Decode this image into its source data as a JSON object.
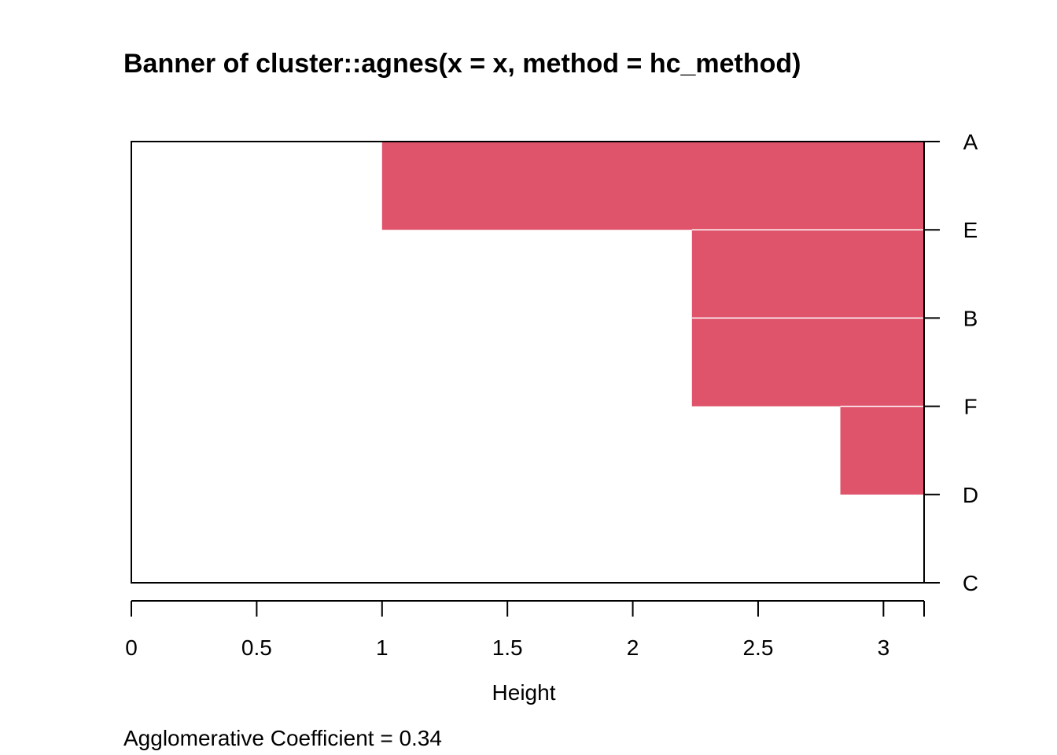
{
  "chart_data": {
    "type": "bar",
    "title": "Banner of  cluster::agnes(x = x, method = hc_method)",
    "xlabel": "Height",
    "ylabel": "",
    "order": [
      "A",
      "E",
      "B",
      "F",
      "D",
      "C"
    ],
    "merge_heights": [
      1.0,
      2.236,
      2.236,
      2.828,
      3.162
    ],
    "xlim": [
      0,
      3.162
    ],
    "xticks": [
      0,
      0.5,
      1,
      1.5,
      2,
      2.5,
      3
    ],
    "xtick_labels": [
      "0",
      "0.5",
      "1",
      "1.5",
      "2",
      "2.5",
      "3"
    ],
    "bar_color": "#DF536B",
    "separator_color": "#FFFFFF",
    "grid": false,
    "footnote_label": "Agglomerative Coefficient = ",
    "agglomerative_coefficient": "0.34"
  }
}
